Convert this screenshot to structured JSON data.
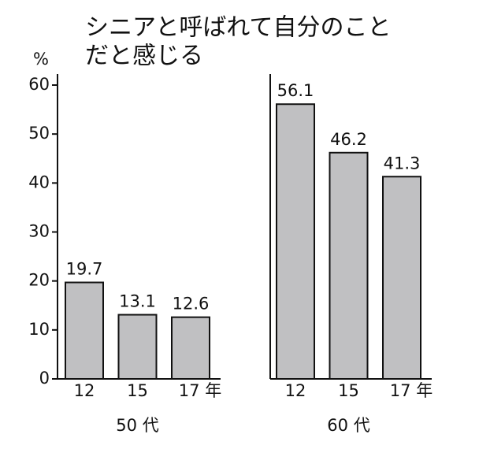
{
  "chart_data": {
    "type": "bar",
    "title": [
      "シニアと呼ばれて自分のこと",
      "だと感じる"
    ],
    "y_unit": "%",
    "ylim": [
      0,
      60
    ],
    "yticks": [
      0,
      10,
      20,
      30,
      40,
      50,
      60
    ],
    "color": "#c0c0c2",
    "panels": [
      {
        "label": "50 代",
        "categories": [
          "12",
          "15",
          "17 年"
        ],
        "values": [
          19.7,
          13.1,
          12.6
        ]
      },
      {
        "label": "60 代",
        "categories": [
          "12",
          "15",
          "17 年"
        ],
        "values": [
          56.1,
          46.2,
          41.3
        ]
      }
    ]
  }
}
